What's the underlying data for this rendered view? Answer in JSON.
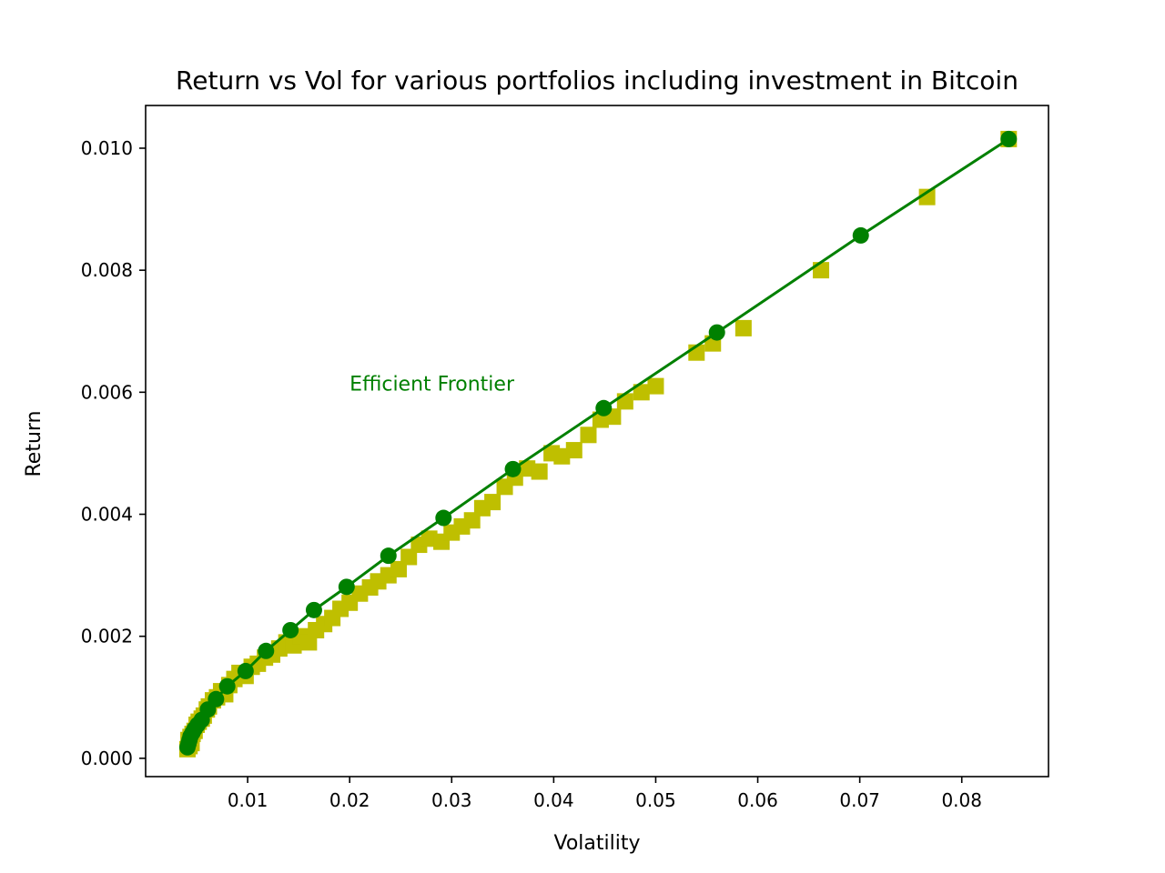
{
  "chart_data": {
    "type": "scatter",
    "title": "Return vs Vol for various portfolios including investment in Bitcoin",
    "xlabel": "Volatility",
    "ylabel": "Return",
    "xlim": [
      0.0,
      0.0885
    ],
    "ylim": [
      -0.0003,
      0.0107
    ],
    "xticks": [
      0.01,
      0.02,
      0.03,
      0.04,
      0.05,
      0.06,
      0.07,
      0.08
    ],
    "xtick_labels": [
      "0.01",
      "0.02",
      "0.03",
      "0.04",
      "0.05",
      "0.06",
      "0.07",
      "0.08"
    ],
    "yticks": [
      0.0,
      0.002,
      0.004,
      0.006,
      0.008,
      0.01
    ],
    "ytick_labels": [
      "0.000",
      "0.002",
      "0.004",
      "0.006",
      "0.008",
      "0.010"
    ],
    "grid": false,
    "legend": "none",
    "annotations": [
      {
        "text": "Efficient Frontier",
        "x": 0.02,
        "y": 0.006,
        "color": "#008000"
      }
    ],
    "series": [
      {
        "kind": "random-portfolios",
        "marker": "square",
        "color": "#bfbf00",
        "x": [
          0.0041,
          0.0043,
          0.0045,
          0.0042,
          0.0046,
          0.0048,
          0.005,
          0.0044,
          0.0052,
          0.0055,
          0.0057,
          0.006,
          0.0062,
          0.0066,
          0.007,
          0.0074,
          0.0078,
          0.0082,
          0.0087,
          0.0092,
          0.0098,
          0.0104,
          0.011,
          0.0117,
          0.0124,
          0.0131,
          0.0138,
          0.0145,
          0.0152,
          0.016,
          0.0167,
          0.0175,
          0.0183,
          0.0191,
          0.02,
          0.021,
          0.022,
          0.0228,
          0.0238,
          0.0248,
          0.0258,
          0.0268,
          0.0278,
          0.029,
          0.03,
          0.031,
          0.032,
          0.033,
          0.034,
          0.0352,
          0.0362,
          0.0374,
          0.0386,
          0.0398,
          0.0408,
          0.042,
          0.0434,
          0.0446,
          0.0458,
          0.047,
          0.0486,
          0.05,
          0.054,
          0.0556,
          0.0586,
          0.0662,
          0.0766,
          0.0846
        ],
        "y": [
          0.00015,
          0.0002,
          0.00025,
          0.0003,
          0.0004,
          0.00045,
          0.00055,
          0.00035,
          0.0006,
          0.00065,
          0.0007,
          0.0008,
          0.00085,
          0.00095,
          0.001,
          0.0011,
          0.00105,
          0.0012,
          0.0013,
          0.0014,
          0.00135,
          0.0015,
          0.00155,
          0.00165,
          0.0017,
          0.0018,
          0.0019,
          0.00185,
          0.002,
          0.0019,
          0.0021,
          0.0022,
          0.0023,
          0.00245,
          0.00255,
          0.0027,
          0.0028,
          0.0029,
          0.003,
          0.0031,
          0.0033,
          0.0035,
          0.0036,
          0.00355,
          0.0037,
          0.0038,
          0.0039,
          0.0041,
          0.0042,
          0.00445,
          0.0046,
          0.00475,
          0.0047,
          0.005,
          0.00495,
          0.00505,
          0.0053,
          0.00555,
          0.0056,
          0.00585,
          0.006,
          0.0061,
          0.00665,
          0.0068,
          0.00705,
          0.008,
          0.0092,
          0.01015
        ]
      },
      {
        "kind": "efficient-frontier",
        "marker": "circle",
        "line": true,
        "color": "#008000",
        "x": [
          0.0041,
          0.0042,
          0.0043,
          0.0044,
          0.0046,
          0.0048,
          0.0051,
          0.0055,
          0.0061,
          0.0069,
          0.008,
          0.0098,
          0.0118,
          0.0142,
          0.0165,
          0.0197,
          0.0238,
          0.0292,
          0.036,
          0.0449,
          0.056,
          0.0701,
          0.0846
        ],
        "y": [
          0.00018,
          0.00024,
          0.0003,
          0.00036,
          0.00042,
          0.00048,
          0.00055,
          0.00063,
          0.0008,
          0.00097,
          0.00118,
          0.00143,
          0.00176,
          0.0021,
          0.00243,
          0.00281,
          0.00332,
          0.00394,
          0.00474,
          0.00574,
          0.00698,
          0.00857,
          0.01015
        ]
      }
    ]
  }
}
